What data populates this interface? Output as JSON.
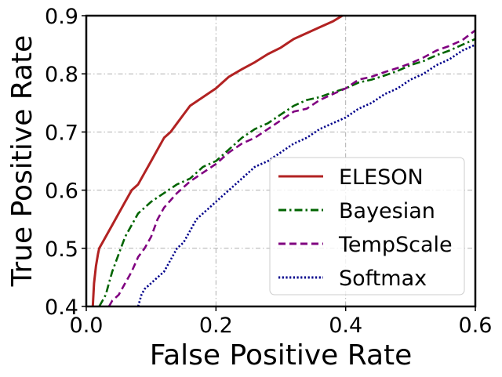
{
  "chart_data": {
    "type": "line",
    "title": "",
    "xlabel": "False Positive Rate",
    "ylabel": "True Positive Rate",
    "xlim": [
      0.0,
      0.6
    ],
    "ylim": [
      0.4,
      0.9
    ],
    "xticks": [
      "0.0",
      "0.2",
      "0.4",
      "0.6"
    ],
    "yticks": [
      "0.4",
      "0.5",
      "0.6",
      "0.7",
      "0.8",
      "0.9"
    ],
    "grid": true,
    "legend_position": "bottom-right",
    "series": [
      {
        "name": "ELESON",
        "color": "#b22222",
        "style": "solid",
        "x": [
          0.01,
          0.012,
          0.015,
          0.018,
          0.02,
          0.025,
          0.03,
          0.04,
          0.05,
          0.06,
          0.07,
          0.08,
          0.09,
          0.1,
          0.11,
          0.12,
          0.13,
          0.14,
          0.15,
          0.16,
          0.18,
          0.2,
          0.22,
          0.24,
          0.26,
          0.28,
          0.3,
          0.32,
          0.34,
          0.36,
          0.38,
          0.395
        ],
        "y": [
          0.4,
          0.44,
          0.47,
          0.49,
          0.5,
          0.51,
          0.52,
          0.54,
          0.56,
          0.58,
          0.6,
          0.61,
          0.63,
          0.65,
          0.67,
          0.69,
          0.7,
          0.715,
          0.73,
          0.745,
          0.76,
          0.775,
          0.795,
          0.808,
          0.82,
          0.834,
          0.845,
          0.86,
          0.87,
          0.88,
          0.89,
          0.9
        ]
      },
      {
        "name": "Bayesian",
        "color": "#006400",
        "style": "dashdot",
        "x": [
          0.02,
          0.025,
          0.03,
          0.035,
          0.04,
          0.05,
          0.06,
          0.07,
          0.08,
          0.09,
          0.1,
          0.12,
          0.14,
          0.16,
          0.18,
          0.2,
          0.22,
          0.24,
          0.26,
          0.28,
          0.3,
          0.32,
          0.34,
          0.36,
          0.38,
          0.4,
          0.42,
          0.44,
          0.46,
          0.48,
          0.5,
          0.52,
          0.54,
          0.56,
          0.58,
          0.6
        ],
        "y": [
          0.4,
          0.41,
          0.42,
          0.44,
          0.46,
          0.49,
          0.52,
          0.54,
          0.56,
          0.57,
          0.58,
          0.595,
          0.61,
          0.62,
          0.64,
          0.65,
          0.67,
          0.69,
          0.705,
          0.715,
          0.73,
          0.745,
          0.755,
          0.76,
          0.768,
          0.775,
          0.785,
          0.79,
          0.797,
          0.805,
          0.815,
          0.822,
          0.832,
          0.84,
          0.85,
          0.86
        ]
      },
      {
        "name": "TempScale",
        "color": "#800080",
        "style": "dashed",
        "x": [
          0.035,
          0.04,
          0.05,
          0.06,
          0.07,
          0.08,
          0.09,
          0.1,
          0.11,
          0.12,
          0.14,
          0.16,
          0.18,
          0.2,
          0.22,
          0.24,
          0.26,
          0.28,
          0.3,
          0.32,
          0.34,
          0.36,
          0.38,
          0.4,
          0.42,
          0.44,
          0.46,
          0.48,
          0.5,
          0.52,
          0.54,
          0.56,
          0.58,
          0.6
        ],
        "y": [
          0.4,
          0.41,
          0.42,
          0.44,
          0.46,
          0.485,
          0.5,
          0.52,
          0.55,
          0.57,
          0.595,
          0.615,
          0.63,
          0.645,
          0.665,
          0.68,
          0.69,
          0.705,
          0.72,
          0.735,
          0.74,
          0.755,
          0.765,
          0.775,
          0.79,
          0.795,
          0.803,
          0.81,
          0.818,
          0.828,
          0.84,
          0.848,
          0.858,
          0.875
        ]
      },
      {
        "name": "Softmax",
        "color": "#00008b",
        "style": "dotted",
        "x": [
          0.08,
          0.085,
          0.09,
          0.1,
          0.11,
          0.12,
          0.13,
          0.14,
          0.15,
          0.16,
          0.17,
          0.18,
          0.19,
          0.2,
          0.22,
          0.24,
          0.26,
          0.28,
          0.3,
          0.32,
          0.34,
          0.36,
          0.38,
          0.4,
          0.42,
          0.44,
          0.46,
          0.48,
          0.5,
          0.52,
          0.54,
          0.56,
          0.58,
          0.6
        ],
        "y": [
          0.4,
          0.42,
          0.43,
          0.44,
          0.45,
          0.46,
          0.48,
          0.5,
          0.51,
          0.53,
          0.55,
          0.56,
          0.57,
          0.58,
          0.6,
          0.62,
          0.64,
          0.65,
          0.665,
          0.68,
          0.69,
          0.705,
          0.715,
          0.725,
          0.74,
          0.75,
          0.765,
          0.775,
          0.79,
          0.8,
          0.815,
          0.825,
          0.84,
          0.85
        ]
      }
    ]
  }
}
